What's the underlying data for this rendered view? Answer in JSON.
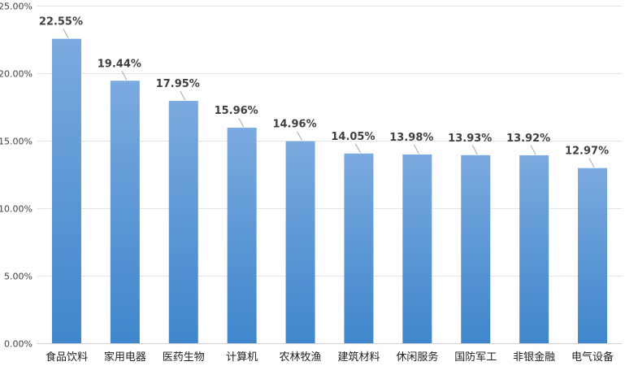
{
  "chart_data": {
    "type": "bar",
    "categories": [
      "食品饮料",
      "家用电器",
      "医药生物",
      "计算机",
      "农林牧渔",
      "建筑材料",
      "休闲服务",
      "国防军工",
      "非银金融",
      "电气设备"
    ],
    "values": [
      22.55,
      19.44,
      17.95,
      15.96,
      14.96,
      14.05,
      13.98,
      13.93,
      13.92,
      12.97
    ],
    "data_labels": [
      "22.55%",
      "19.44%",
      "17.95%",
      "15.96%",
      "14.96%",
      "14.05%",
      "13.98%",
      "13.93%",
      "13.92%",
      "12.97%"
    ],
    "y_ticks": [
      0,
      5,
      10,
      15,
      20,
      25
    ],
    "y_tick_labels": [
      "0.00%",
      "5.00%",
      "10.00%",
      "15.00%",
      "20.00%",
      "25.00%"
    ],
    "ylim": [
      0,
      25
    ],
    "grid": true,
    "legend": "none",
    "colors": {
      "bar_top": "#7aaadf",
      "bar_bottom": "#3f86cc",
      "grid": "#e3e3e3",
      "label": "#404040"
    }
  }
}
